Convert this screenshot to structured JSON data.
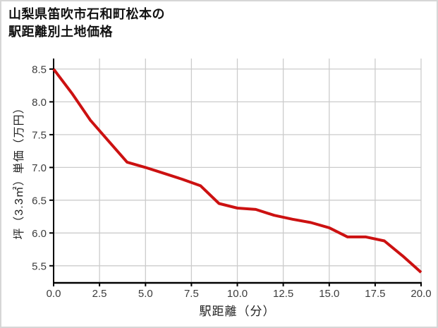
{
  "window": {
    "title_line1": "山梨県笛吹市石和町松本の",
    "title_line2": "駅距離別土地価格"
  },
  "chart_data": {
    "type": "line",
    "title": "山梨県笛吹市石和町松本の駅距離別土地価格",
    "xlabel": "駅距離（分）",
    "ylabel": "坪（3.3㎡）単価（万円）",
    "x": [
      0,
      1,
      2,
      3,
      4,
      5,
      6,
      7,
      8,
      9,
      10,
      11,
      12,
      13,
      14,
      15,
      16,
      17,
      18,
      19,
      20
    ],
    "y": [
      8.5,
      8.13,
      7.72,
      7.4,
      7.08,
      7.0,
      6.91,
      6.82,
      6.72,
      6.45,
      6.38,
      6.36,
      6.27,
      6.21,
      6.16,
      6.08,
      5.94,
      5.94,
      5.88,
      5.65,
      5.4
    ],
    "xlim": [
      0,
      20
    ],
    "ylim": [
      5.24,
      8.66
    ],
    "x_tick_values": [
      0,
      2.5,
      5,
      7.5,
      10,
      12.5,
      15,
      17.5,
      20
    ],
    "x_tick_labels": [
      "0.0",
      "2.5",
      "5.0",
      "7.5",
      "10.0",
      "12.5",
      "15.0",
      "17.5",
      "20.0"
    ],
    "y_tick_values": [
      5.5,
      6.0,
      6.5,
      7.0,
      7.5,
      8.0,
      8.5
    ],
    "y_tick_labels": [
      "5.5",
      "6.0",
      "6.5",
      "7.0",
      "7.5",
      "8.0",
      "8.5"
    ],
    "grid": true,
    "legend_position": "none"
  },
  "colors": {
    "line": "#cc1111",
    "grid": "#cccccc",
    "axis": "#000000",
    "border": "#d6d6d6",
    "background": "#ffffff",
    "title_text": "#111111",
    "tick_text": "#3c3c3c",
    "label_text": "#222222"
  }
}
